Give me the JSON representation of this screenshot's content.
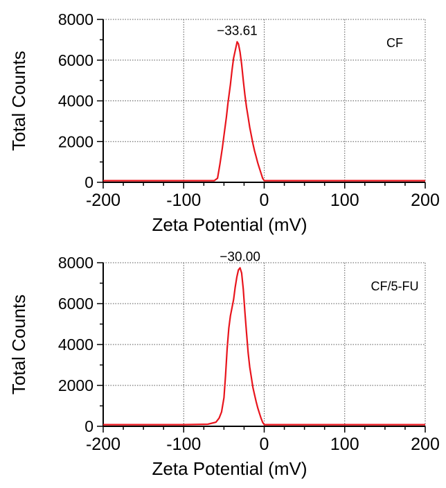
{
  "chart_data": [
    {
      "type": "line",
      "sample_label": "CF",
      "peak_label": "−33.61",
      "xlabel": "Zeta Potential (mV)",
      "ylabel": "Total Counts",
      "xlim": [
        -200,
        200
      ],
      "ylim": [
        0,
        8000
      ],
      "xticks": [
        -200,
        -100,
        0,
        100,
        200
      ],
      "xtick_labels": [
        "-200",
        "-100",
        "0",
        "100",
        "200"
      ],
      "yticks": [
        0,
        2000,
        4000,
        6000,
        8000
      ],
      "ytick_labels": [
        "0",
        "2000",
        "4000",
        "6000",
        "8000"
      ],
      "grid": true,
      "line_color": "#e8141c",
      "series": [
        {
          "x": [
            -200,
            -150,
            -100,
            -65,
            -62,
            -58,
            -55,
            -52,
            -50,
            -47,
            -45,
            -42,
            -40,
            -38,
            -35,
            -33.61,
            -32,
            -30,
            -28,
            -26,
            -24,
            -22,
            -20,
            -18,
            -16,
            -14,
            -12,
            -10,
            -8,
            -6,
            -4,
            -2,
            0,
            2,
            50,
            100,
            150,
            200
          ],
          "y": [
            80,
            80,
            80,
            80,
            80,
            200,
            900,
            1700,
            2300,
            3200,
            3900,
            4800,
            5500,
            6100,
            6650,
            6900,
            6800,
            6400,
            5800,
            5000,
            4300,
            3700,
            3200,
            2700,
            2300,
            1900,
            1550,
            1250,
            950,
            700,
            450,
            200,
            80,
            80,
            80,
            80,
            80,
            80
          ]
        }
      ]
    },
    {
      "type": "line",
      "sample_label": "CF/5-FU",
      "peak_label": "−30.00",
      "xlabel": "Zeta Potential (mV)",
      "ylabel": "Total Counts",
      "xlim": [
        -200,
        200
      ],
      "ylim": [
        0,
        8000
      ],
      "xticks": [
        -200,
        -100,
        0,
        100,
        200
      ],
      "xtick_labels": [
        "-200",
        "-100",
        "0",
        "100",
        "200"
      ],
      "yticks": [
        0,
        2000,
        4000,
        6000,
        8000
      ],
      "ytick_labels": [
        "0",
        "2000",
        "4000",
        "6000",
        "8000"
      ],
      "grid": true,
      "line_color": "#e8141c",
      "series": [
        {
          "x": [
            -200,
            -150,
            -100,
            -70,
            -60,
            -56,
            -53,
            -50,
            -48,
            -46,
            -44,
            -42,
            -40,
            -38,
            -36,
            -34,
            -32,
            -30,
            -28,
            -26,
            -24,
            -22,
            -20,
            -18,
            -16,
            -14,
            -12,
            -10,
            -8,
            -6,
            -4,
            -2,
            0,
            2,
            50,
            100,
            150,
            200
          ],
          "y": [
            80,
            80,
            80,
            100,
            200,
            400,
            700,
            1400,
            2500,
            3800,
            4800,
            5400,
            5800,
            6200,
            6800,
            7300,
            7650,
            7750,
            7500,
            6700,
            5600,
            4600,
            3600,
            2900,
            2400,
            1900,
            1550,
            1200,
            900,
            650,
            400,
            200,
            80,
            80,
            80,
            80,
            80,
            80
          ]
        }
      ]
    }
  ]
}
